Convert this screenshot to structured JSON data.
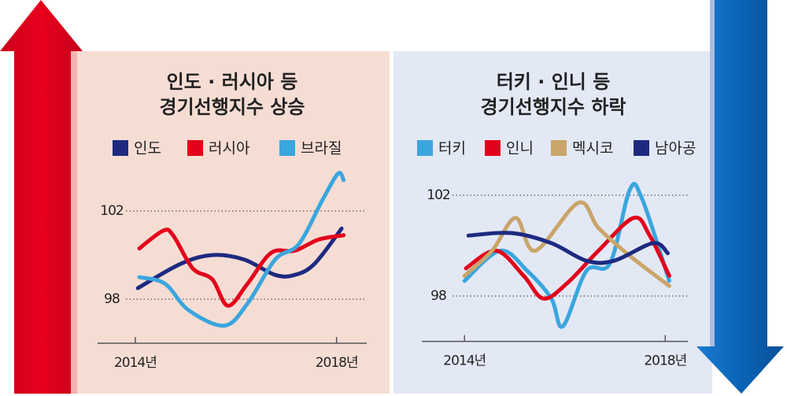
{
  "chart_data": [
    {
      "type": "line",
      "title": [
        "인도 · 러시아 등",
        "경기선행지수 상승"
      ],
      "xlim": [
        2013.25,
        2018.6
      ],
      "xticks": [
        {
          "value": 2014,
          "label": "2014년"
        },
        {
          "value": 2018,
          "label": "2018년"
        }
      ],
      "ylim": [
        96,
        104
      ],
      "yticks": [
        98,
        102
      ],
      "grid": true,
      "series": [
        {
          "name": "인도",
          "color": "#1d2a80",
          "x": [
            2014.05,
            2014.9,
            2015.53,
            2016.16,
            2016.78,
            2017.17,
            2017.56,
            2018.1
          ],
          "values": [
            98.5,
            99.6,
            100,
            99.8,
            99.1,
            99.1,
            99.6,
            101.2
          ]
        },
        {
          "name": "러시아",
          "color": "#e3001b",
          "x": [
            2014.08,
            2014.55,
            2014.75,
            2015.14,
            2015.53,
            2015.84,
            2016.23,
            2016.7,
            2017.17,
            2017.64,
            2018.14
          ],
          "values": [
            100.3,
            101.1,
            100.9,
            99.4,
            98.9,
            97.7,
            98.7,
            100.1,
            100.2,
            100.7,
            100.9
          ]
        },
        {
          "name": "브라질",
          "color": "#3aa6dd",
          "x": [
            2014.08,
            2014.59,
            2015.06,
            2015.77,
            2016.23,
            2016.78,
            2017.25,
            2017.72,
            2018.03,
            2018.14
          ],
          "values": [
            99,
            98.7,
            97.5,
            96.8,
            97.8,
            99.8,
            100.5,
            102.5,
            103.7,
            103.4
          ]
        }
      ]
    },
    {
      "type": "line",
      "title": [
        "터키 · 인니 등",
        "경기선행지수 하락"
      ],
      "xlim": [
        2013.15,
        2018.45
      ],
      "xticks": [
        {
          "value": 2014,
          "label": "2014년"
        },
        {
          "value": 2018,
          "label": "2018년"
        }
      ],
      "ylim": [
        96.2,
        104
      ],
      "yticks": [
        98,
        102
      ],
      "grid": true,
      "series": [
        {
          "name": "터키",
          "color": "#3aa6dd",
          "x": [
            2014,
            2014.71,
            2015.25,
            2015.73,
            2015.96,
            2016.43,
            2016.9,
            2017.29,
            2017.53,
            2018.08
          ],
          "values": [
            98.6,
            99.8,
            99,
            97.9,
            96.8,
            99,
            99.3,
            102.2,
            101.9,
            98.6
          ]
        },
        {
          "name": "인니",
          "color": "#e3001b",
          "x": [
            2014.03,
            2014.63,
            2015.18,
            2015.57,
            2016.04,
            2016.67,
            2017.37,
            2017.69,
            2018.08
          ],
          "values": [
            99.1,
            99.8,
            98.8,
            97.9,
            98.5,
            99.8,
            101.1,
            100.4,
            98.8
          ]
        },
        {
          "name": "멕시코",
          "color": "#c9a56a",
          "x": [
            2014,
            2014.55,
            2015.02,
            2015.41,
            2016.27,
            2016.67,
            2017.29,
            2018.08
          ],
          "values": [
            98.8,
            99.8,
            101.1,
            99.8,
            101.7,
            100.7,
            99.6,
            98.4
          ]
        },
        {
          "name": "남아공",
          "color": "#1d2a80",
          "x": [
            2014.08,
            2014.94,
            2015.73,
            2016.43,
            2016.98,
            2017.76,
            2018.05
          ],
          "values": [
            100.4,
            100.5,
            100.1,
            99.4,
            99.4,
            100.1,
            99.7
          ]
        }
      ]
    }
  ]
}
